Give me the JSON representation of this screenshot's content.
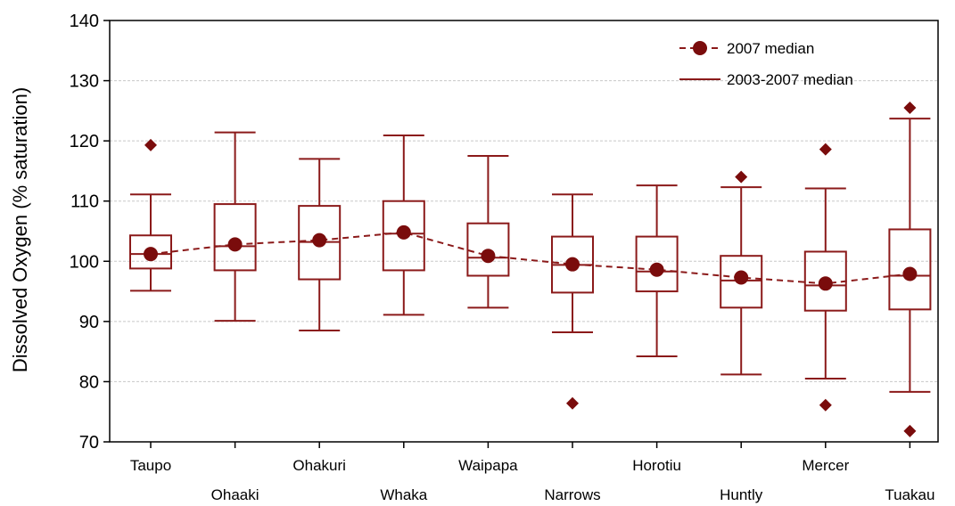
{
  "chart_data": {
    "type": "boxplot",
    "ylabel": "Dissolved Oxygen (% saturation)",
    "ylim": [
      70,
      140
    ],
    "yticks": [
      70,
      80,
      90,
      100,
      110,
      120,
      130,
      140
    ],
    "grid": "horizontal",
    "legend_position": "top-right",
    "colors": {
      "box": "#8b1a1a",
      "marker": "#7a0c0c",
      "grid": "#c8c8c8"
    },
    "series": [
      {
        "name": "2007 median",
        "style": "dashed-line-with-circle-markers"
      },
      {
        "name": "2003-2007 median",
        "style": "solid-line"
      }
    ],
    "categories": [
      "Taupo",
      "Ohaaki",
      "Ohakuri",
      "Whaka",
      "Waipapa",
      "Narrows",
      "Horotiu",
      "Huntly",
      "Mercer",
      "Tuakau"
    ],
    "boxes": [
      {
        "whisker_low": 95.1,
        "q1": 98.8,
        "median": 101.2,
        "q3": 104.3,
        "whisker_high": 111.1,
        "outliers": [
          119.3
        ]
      },
      {
        "whisker_low": 90.1,
        "q1": 98.5,
        "median": 102.5,
        "q3": 109.5,
        "whisker_high": 121.4,
        "outliers": []
      },
      {
        "whisker_low": 88.5,
        "q1": 97.0,
        "median": 103.2,
        "q3": 109.2,
        "whisker_high": 117.0,
        "outliers": []
      },
      {
        "whisker_low": 91.1,
        "q1": 98.5,
        "median": 104.6,
        "q3": 110.0,
        "whisker_high": 120.9,
        "outliers": []
      },
      {
        "whisker_low": 92.3,
        "q1": 97.6,
        "median": 100.6,
        "q3": 106.3,
        "whisker_high": 117.5,
        "outliers": []
      },
      {
        "whisker_low": 88.2,
        "q1": 94.8,
        "median": 99.4,
        "q3": 104.1,
        "whisker_high": 111.1,
        "outliers": [
          76.4
        ]
      },
      {
        "whisker_low": 84.2,
        "q1": 95.0,
        "median": 98.3,
        "q3": 104.1,
        "whisker_high": 112.6,
        "outliers": []
      },
      {
        "whisker_low": 81.2,
        "q1": 92.3,
        "median": 96.8,
        "q3": 100.9,
        "whisker_high": 112.3,
        "outliers": [
          114.0
        ]
      },
      {
        "whisker_low": 80.5,
        "q1": 91.8,
        "median": 96.0,
        "q3": 101.6,
        "whisker_high": 112.1,
        "outliers": [
          118.6,
          76.1
        ]
      },
      {
        "whisker_low": 78.3,
        "q1": 92.0,
        "median": 97.6,
        "q3": 105.3,
        "whisker_high": 123.7,
        "outliers": [
          125.5,
          71.8
        ]
      }
    ],
    "median_2007": [
      101.2,
      102.8,
      103.5,
      104.8,
      100.9,
      99.5,
      98.6,
      97.3,
      96.3,
      97.9
    ]
  }
}
